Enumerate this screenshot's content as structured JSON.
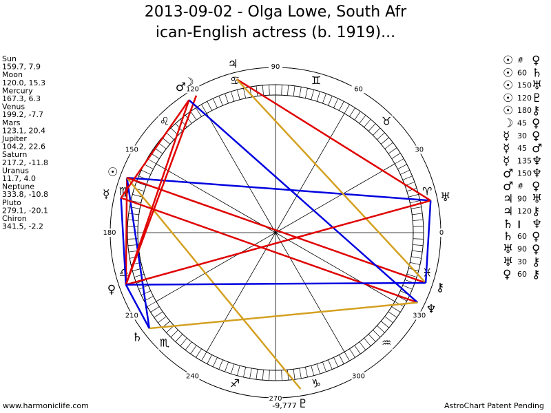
{
  "header": {
    "title_lines": [
      "2013-09-02 - Olga Lowe, South Afr",
      "ican-English actress (b. 1919)..."
    ]
  },
  "planets": [
    {
      "name": "Sun",
      "glyph": "☉",
      "position": "159.7, 7.9"
    },
    {
      "name": "Moon",
      "glyph": "☽",
      "position": "120.0, 15.3"
    },
    {
      "name": "Mercury",
      "glyph": "☿",
      "position": "167.3, 6.3"
    },
    {
      "name": "Venus",
      "glyph": "♀",
      "position": "199.2, -7.7"
    },
    {
      "name": "Mars",
      "glyph": "♂",
      "position": "123.1, 20.4"
    },
    {
      "name": "Jupiter",
      "glyph": "♃",
      "position": "104.2, 22.6"
    },
    {
      "name": "Saturn",
      "glyph": "♄",
      "position": "217.2, -11.8"
    },
    {
      "name": "Uranus",
      "glyph": "♅",
      "position": "11.7, 4.0"
    },
    {
      "name": "Neptune",
      "glyph": "♆",
      "position": "333.8, -10.8"
    },
    {
      "name": "Pluto",
      "glyph": "♇",
      "position": "279.1, -20.1"
    },
    {
      "name": "Chiron",
      "glyph": "⚷",
      "position": "341.5, -2.2"
    }
  ],
  "aspects": [
    {
      "p1": "☉",
      "aspect": "#",
      "p2": "♀",
      "color": "#e00000"
    },
    {
      "p1": "☉",
      "aspect": "60",
      "p2": "♄",
      "color": "#0000e0"
    },
    {
      "p1": "☉",
      "aspect": "150",
      "p2": "♅",
      "color": "#0000e0"
    },
    {
      "p1": "☉",
      "aspect": "120",
      "p2": "♇",
      "color": "#d4a020"
    },
    {
      "p1": "☉",
      "aspect": "180",
      "p2": "⚷",
      "color": "#e00000"
    },
    {
      "p1": "☽",
      "aspect": "45",
      "p2": "♀",
      "color": "#e00000"
    },
    {
      "p1": "☿",
      "aspect": "30",
      "p2": "♀",
      "color": "#0000e0"
    },
    {
      "p1": "☿",
      "aspect": "45",
      "p2": "♂",
      "color": "#e00000"
    },
    {
      "p1": "☿",
      "aspect": "135",
      "p2": "♆",
      "color": "#e00000"
    },
    {
      "p1": "♂",
      "aspect": "150",
      "p2": "♆",
      "color": "#0000e0"
    },
    {
      "p1": "♂",
      "aspect": "#",
      "p2": "♀",
      "color": "#e00000"
    },
    {
      "p1": "♃",
      "aspect": "90",
      "p2": "♅",
      "color": "#e00000"
    },
    {
      "p1": "♃",
      "aspect": "120",
      "p2": "⚷",
      "color": "#d4a020"
    },
    {
      "p1": "♄",
      "aspect": "∥",
      "p2": "♆",
      "color": "#d4a020"
    },
    {
      "p1": "♄",
      "aspect": "60",
      "p2": "♀",
      "color": "#0000e0"
    },
    {
      "p1": "♅",
      "aspect": "90",
      "p2": "♀",
      "color": "#e00000"
    },
    {
      "p1": "♅",
      "aspect": "30",
      "p2": "⚷",
      "color": "#0000e0"
    },
    {
      "p1": "♀",
      "aspect": "60",
      "p2": "⚷",
      "color": "#0000e0"
    }
  ],
  "signs": [
    "♈",
    "♉",
    "♊",
    "♋",
    "♌",
    "♍",
    "♎",
    "♏",
    "♐",
    "♑",
    "♒",
    "♓"
  ],
  "degree_ticks": [
    0,
    30,
    60,
    90,
    120,
    150,
    180,
    210,
    240,
    270,
    300,
    330
  ],
  "center_label": "-9,777",
  "footer": {
    "left": "www.harmoniclife.com",
    "right": "AstroChart Patent Pending"
  }
}
